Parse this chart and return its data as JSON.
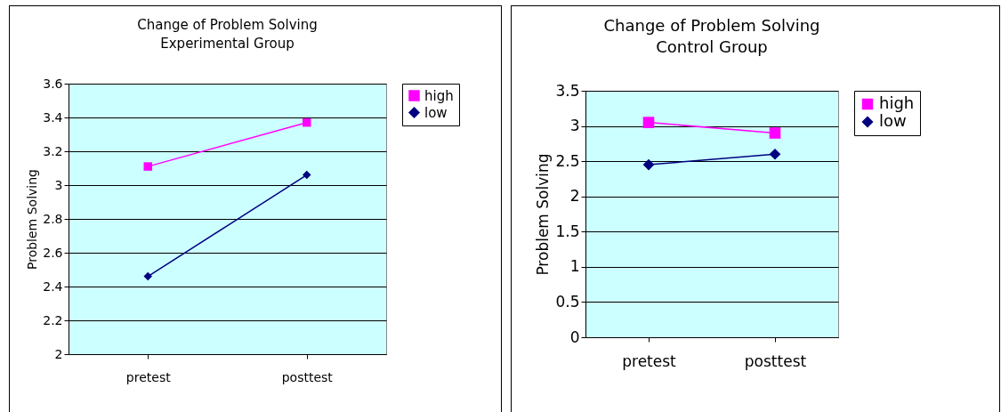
{
  "chart_data": [
    {
      "type": "line",
      "title": "Change of Problem Solving",
      "subtitle": "Experimental Group",
      "ylabel": "Problem Solving",
      "categories": [
        "pretest",
        "posttest"
      ],
      "series": [
        {
          "name": "high",
          "color": "#ff00ff",
          "marker": "square",
          "values": [
            3.11,
            3.37
          ]
        },
        {
          "name": "low",
          "color": "#000080",
          "marker": "diamond",
          "values": [
            2.46,
            3.06
          ]
        }
      ],
      "ylim": [
        2,
        3.6
      ],
      "yticks": [
        2,
        2.2,
        2.4,
        2.6,
        2.8,
        3,
        3.2,
        3.4,
        3.6
      ],
      "grid": "y",
      "legend": "right"
    },
    {
      "type": "line",
      "title": "Change of Problem Solving",
      "subtitle": "Control Group",
      "ylabel": "Problem Solving",
      "categories": [
        "pretest",
        "posttest"
      ],
      "series": [
        {
          "name": "high",
          "color": "#ff00ff",
          "marker": "square",
          "values": [
            3.05,
            2.9
          ]
        },
        {
          "name": "low",
          "color": "#000080",
          "marker": "diamond",
          "values": [
            2.45,
            2.6
          ]
        }
      ],
      "ylim": [
        0,
        3.5
      ],
      "yticks": [
        0,
        0.5,
        1,
        1.5,
        2,
        2.5,
        3,
        3.5
      ],
      "grid": "y",
      "legend": "right"
    }
  ]
}
